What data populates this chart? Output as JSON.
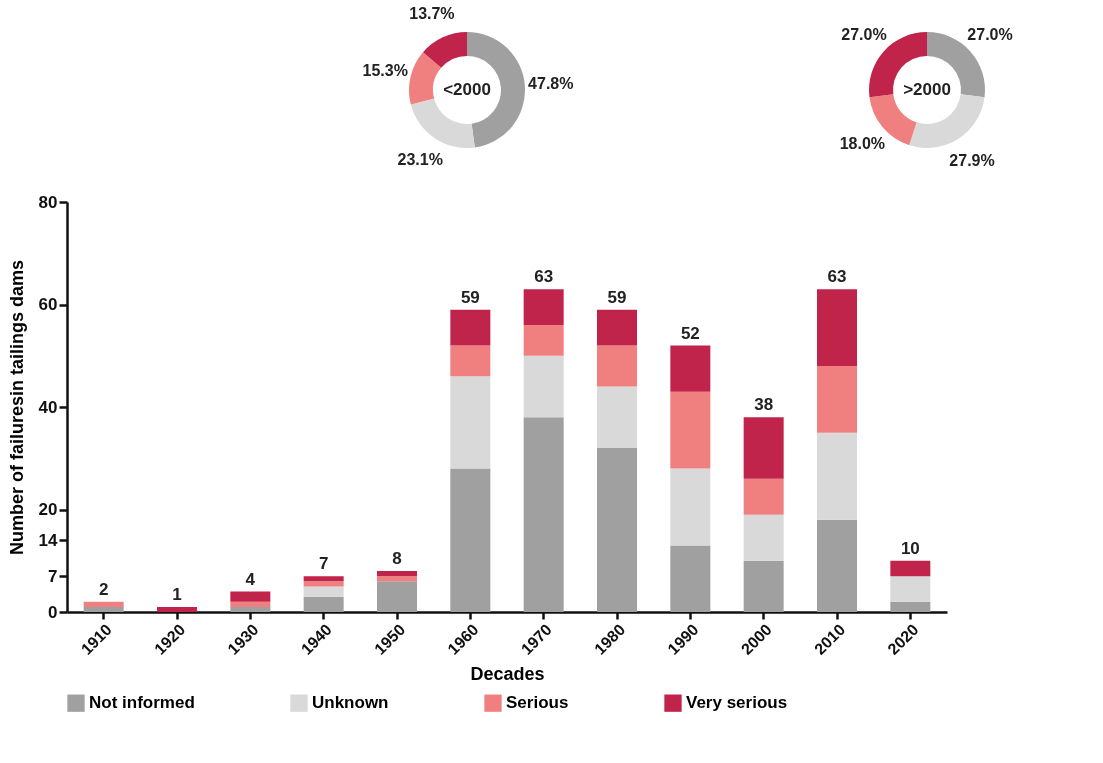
{
  "chart_data": [
    {
      "type": "donut",
      "title": "<2000",
      "categories": [
        null,
        null,
        null,
        null
      ],
      "values": [
        47.8,
        23.1,
        15.3,
        13.7
      ],
      "colors": [
        "#a0a0a0",
        "#d9d9d9",
        "#f08080",
        "#c0244a"
      ],
      "value_labels": [
        "47.8%",
        "23.1%",
        "15.3%",
        "13.7%"
      ]
    },
    {
      "type": "donut",
      "title": ">2000",
      "categories": [
        null,
        null,
        null,
        null
      ],
      "values": [
        27.0,
        27.9,
        18.0,
        27.0
      ],
      "colors": [
        "#a0a0a0",
        "#d9d9d9",
        "#f08080",
        "#c0244a"
      ],
      "value_labels": [
        "27.0%",
        "27.9%",
        "18.0%",
        "27.0%"
      ]
    },
    {
      "type": "bar",
      "stacked": true,
      "categories": [
        "1910",
        "1920",
        "1930",
        "1940",
        "1950",
        "1960",
        "1970",
        "1980",
        "1990",
        "2000",
        "2010",
        "2020"
      ],
      "ylim": [
        0,
        80
      ],
      "yticks": [
        0,
        7,
        14,
        20,
        40,
        60,
        80
      ],
      "xlabel": "Decades",
      "ylabel": "Number of failuresin tailings dams",
      "legend": "bottom",
      "series": [
        {
          "name": "Not informed",
          "color": "#a0a0a0",
          "values": [
            1,
            0,
            1,
            3,
            6,
            28,
            38,
            32,
            13,
            10,
            18,
            2
          ]
        },
        {
          "name": "Unknown",
          "color": "#d9d9d9",
          "values": [
            0,
            0,
            0,
            2,
            0,
            18,
            12,
            12,
            15,
            9,
            17,
            5
          ]
        },
        {
          "name": "Serious",
          "color": "#f08080",
          "values": [
            1,
            0,
            1,
            1,
            1,
            6,
            6,
            8,
            15,
            7,
            13,
            0
          ]
        },
        {
          "name": "Very serious",
          "color": "#c0244a",
          "values": [
            0,
            1,
            2,
            1,
            1,
            7,
            7,
            7,
            9,
            12,
            15,
            3
          ]
        }
      ],
      "totals": [
        "2",
        "1",
        "4",
        "7",
        "8",
        "59",
        "63",
        "59",
        "52",
        "38",
        "63",
        "10"
      ]
    }
  ]
}
